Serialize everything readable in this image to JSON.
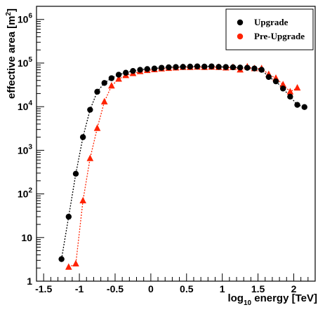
{
  "chart_data": {
    "type": "scatter",
    "xlabel": "log10 energy [TeV]",
    "xlabel_parts": {
      "pre": "log",
      "sub": "10",
      "post": " energy [TeV]"
    },
    "ylabel": "effective area [m2]",
    "ylabel_parts": {
      "pre": "effective area [m",
      "sup": "2",
      "post": "]"
    },
    "xlim": [
      -1.6,
      2.3
    ],
    "ylim": [
      1,
      2000000
    ],
    "yscale": "log",
    "grid": false,
    "legend_position": "top-right",
    "x_ticks": [
      {
        "value": -1.5,
        "label": "-1.5"
      },
      {
        "value": -1.0,
        "label": "-1"
      },
      {
        "value": -0.5,
        "label": "-0.5"
      },
      {
        "value": 0.0,
        "label": "0"
      },
      {
        "value": 0.5,
        "label": "0.5"
      },
      {
        "value": 1.0,
        "label": "1"
      },
      {
        "value": 1.5,
        "label": "1.5"
      },
      {
        "value": 2.0,
        "label": "2"
      }
    ],
    "y_ticks": [
      {
        "value": 1,
        "label": "1"
      },
      {
        "value": 10,
        "label": "10"
      },
      {
        "value": 100,
        "base": "10",
        "exp": "2"
      },
      {
        "value": 1000,
        "base": "10",
        "exp": "3"
      },
      {
        "value": 10000,
        "base": "10",
        "exp": "4"
      },
      {
        "value": 100000,
        "base": "10",
        "exp": "5"
      },
      {
        "value": 1000000,
        "base": "10",
        "exp": "6"
      }
    ],
    "series": [
      {
        "name": "Upgrade",
        "color": "#000000",
        "marker": "circle",
        "points": [
          [
            -1.25,
            3.2
          ],
          [
            -1.15,
            30
          ],
          [
            -1.05,
            290
          ],
          [
            -0.95,
            2000
          ],
          [
            -0.85,
            8500
          ],
          [
            -0.75,
            22000
          ],
          [
            -0.65,
            35000
          ],
          [
            -0.55,
            45000
          ],
          [
            -0.45,
            54000
          ],
          [
            -0.35,
            60000
          ],
          [
            -0.25,
            66000
          ],
          [
            -0.15,
            70000
          ],
          [
            -0.05,
            73000
          ],
          [
            0.05,
            75000
          ],
          [
            0.15,
            78000
          ],
          [
            0.25,
            80000
          ],
          [
            0.35,
            81000
          ],
          [
            0.45,
            82000
          ],
          [
            0.55,
            83000
          ],
          [
            0.65,
            84000
          ],
          [
            0.75,
            83000
          ],
          [
            0.85,
            84000
          ],
          [
            0.95,
            82000
          ],
          [
            1.05,
            81000
          ],
          [
            1.15,
            80000
          ],
          [
            1.25,
            79000
          ],
          [
            1.35,
            78000
          ],
          [
            1.45,
            75000
          ],
          [
            1.55,
            70000
          ],
          [
            1.65,
            48000
          ],
          [
            1.75,
            38000
          ],
          [
            1.85,
            26000
          ],
          [
            1.95,
            17000
          ],
          [
            2.05,
            11000
          ],
          [
            2.15,
            9800
          ]
        ]
      },
      {
        "name": "Pre-Upgrade",
        "color": "#ff2200",
        "marker": "triangle",
        "points": [
          [
            -1.15,
            2.1
          ],
          [
            -1.05,
            2.5
          ],
          [
            -0.95,
            70
          ],
          [
            -0.85,
            650
          ],
          [
            -0.75,
            3200
          ],
          [
            -0.65,
            13000
          ],
          [
            -0.55,
            30000
          ],
          [
            -0.45,
            43000
          ],
          [
            -0.35,
            52000
          ],
          [
            -0.25,
            58000
          ],
          [
            -0.15,
            64000
          ],
          [
            -0.05,
            68000
          ],
          [
            0.05,
            71000
          ],
          [
            0.15,
            74000
          ],
          [
            0.25,
            76000
          ],
          [
            0.35,
            78000
          ],
          [
            0.45,
            80000
          ],
          [
            0.55,
            80000
          ],
          [
            0.65,
            81000
          ],
          [
            0.75,
            80000
          ],
          [
            0.85,
            81000
          ],
          [
            0.95,
            80000
          ],
          [
            1.05,
            78000
          ],
          [
            1.15,
            80000
          ],
          [
            1.25,
            70000
          ],
          [
            1.35,
            82000
          ],
          [
            1.45,
            75000
          ],
          [
            1.55,
            75000
          ],
          [
            1.65,
            55000
          ],
          [
            1.75,
            45000
          ],
          [
            1.85,
            32000
          ],
          [
            1.95,
            22000
          ],
          [
            2.05,
            27000
          ]
        ]
      }
    ]
  }
}
